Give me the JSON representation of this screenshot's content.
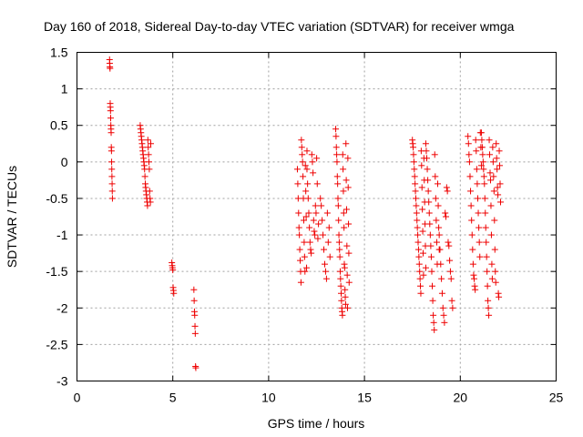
{
  "chart_data": {
    "type": "scatter",
    "title": "Day 160 of 2018, Sidereal Day-to-day VTEC variation (SDTVAR) for receiver wmga",
    "xlabel": "GPS time / hours",
    "ylabel": "SDTVAR / TECUs",
    "xlim": [
      0,
      25
    ],
    "ylim": [
      -3,
      1.5
    ],
    "xticks": [
      "0",
      "5",
      "10",
      "15",
      "20",
      "25"
    ],
    "yticks": [
      "1.5",
      "1",
      "0.5",
      "0",
      "-0.5",
      "-1",
      "-1.5",
      "-2",
      "-2.5",
      "-3"
    ],
    "grid": true,
    "marker": "+",
    "color": "#ee0000",
    "segments": [
      {
        "t0": 1.7,
        "t1": 1.85,
        "values": [
          1.4,
          1.35,
          1.3,
          1.28,
          0.8,
          0.75,
          0.7,
          0.6,
          0.5,
          0.45,
          0.4,
          0.2,
          0.15,
          0.0,
          -0.1,
          -0.2,
          -0.3,
          -0.4,
          -0.5
        ]
      },
      {
        "t0": 3.3,
        "t1": 3.85,
        "values": [
          0.5,
          0.45,
          0.4,
          0.35,
          0.3,
          0.25,
          0.2,
          0.15,
          0.1,
          0.05,
          0.0,
          -0.05,
          -0.1,
          -0.2,
          -0.3,
          -0.35,
          -0.4,
          -0.45,
          -0.5,
          -0.55,
          -0.6,
          0.3,
          0.2,
          0.1,
          0.0,
          -0.1,
          -0.4,
          -0.5,
          -0.55,
          0.25
        ]
      },
      {
        "t0": 4.95,
        "t1": 5.05,
        "values": [
          -1.38,
          -1.42,
          -1.45,
          -1.48,
          -1.72,
          -1.76,
          -1.8
        ]
      },
      {
        "t0": 6.1,
        "t1": 6.2,
        "values": [
          -1.75,
          -1.9,
          -2.05,
          -2.1,
          -2.25,
          -2.35,
          -2.8,
          -2.82
        ]
      },
      {
        "t0": 11.5,
        "t1": 12.0,
        "values": [
          -0.1,
          -0.3,
          -0.5,
          -0.7,
          -0.9,
          -1.0,
          -1.2,
          -1.35,
          -1.5,
          -1.65,
          0.3,
          0.2,
          0.1,
          0.0,
          -0.2,
          -0.5,
          -0.8,
          -1.1,
          -1.3,
          -1.5,
          -0.05,
          -0.4,
          -0.75,
          -1.45,
          0.15
        ]
      },
      {
        "t0": 12.0,
        "t1": 12.6,
        "values": [
          -0.1,
          -0.3,
          -0.5,
          -0.7,
          -0.9,
          -1.1,
          -1.2,
          -1.25,
          0.1,
          0.0,
          -0.15,
          -0.8,
          -0.95,
          -1.0,
          -0.6,
          -0.7,
          0.05,
          -0.3,
          -1.05,
          -0.85
        ]
      },
      {
        "t0": 12.7,
        "t1": 13.2,
        "values": [
          -0.5,
          -0.6,
          -0.8,
          -1.0,
          -1.2,
          -1.4,
          -1.5,
          -1.6,
          -0.7,
          -1.1,
          -0.9,
          -1.3
        ]
      },
      {
        "t0": 13.5,
        "t1": 14.2,
        "values": [
          0.45,
          0.35,
          0.2,
          0.1,
          0.0,
          -0.2,
          -0.3,
          -0.5,
          -0.6,
          -0.8,
          -1.0,
          -1.1,
          -1.2,
          -1.3,
          -1.5,
          -1.6,
          -1.7,
          -1.8,
          -1.9,
          -2.0,
          -2.05,
          -2.1,
          0.1,
          -0.1,
          -0.4,
          -0.7,
          -0.9,
          -1.4,
          -1.45,
          -1.75,
          -1.85,
          -1.95,
          0.25,
          -0.25,
          -0.65,
          -1.15,
          -1.55,
          -2.0,
          0.05,
          -0.35,
          -0.85,
          -1.25,
          -1.65
        ]
      },
      {
        "t0": 17.5,
        "t1": 18.2,
        "values": [
          0.3,
          0.25,
          0.2,
          0.1,
          0.0,
          -0.1,
          -0.2,
          -0.3,
          -0.4,
          -0.5,
          -0.6,
          -0.7,
          -0.8,
          -0.9,
          -1.0,
          -1.1,
          -1.2,
          -1.3,
          -1.4,
          -1.5,
          -1.6,
          -1.7,
          -1.8,
          0.15,
          -0.05,
          -0.35,
          -0.65,
          -0.95,
          -1.25,
          -1.55,
          0.05,
          -0.25,
          -0.55,
          -0.85,
          -1.15,
          -1.45
        ]
      },
      {
        "t0": 18.2,
        "t1": 18.9,
        "values": [
          0.25,
          0.15,
          0.05,
          -0.1,
          -0.25,
          -0.4,
          -0.55,
          -0.7,
          -0.85,
          -1.0,
          -1.15,
          -1.3,
          -1.5,
          -1.7,
          -1.9,
          -2.1,
          -2.2,
          -2.3,
          0.1,
          -0.2,
          -0.5,
          -0.8,
          -1.1,
          -1.4,
          -0.3,
          -0.6,
          -0.9,
          -1.2
        ]
      },
      {
        "t0": 18.9,
        "t1": 19.6,
        "values": [
          -1.0,
          -1.2,
          -1.4,
          -1.6,
          -1.8,
          -2.0,
          -2.1,
          -2.2,
          -0.7,
          -0.75,
          -0.35,
          -0.4,
          -1.1,
          -1.15,
          -1.35,
          -1.5,
          -1.6,
          -1.9,
          -2.0
        ]
      },
      {
        "t0": 20.4,
        "t1": 21.1,
        "values": [
          0.35,
          0.25,
          0.1,
          0.0,
          -0.2,
          -0.4,
          -0.6,
          -0.8,
          -1.0,
          -1.2,
          -1.4,
          -1.55,
          -1.6,
          -1.7,
          -1.75,
          0.3,
          0.15,
          -0.1,
          -0.3,
          -0.5,
          -0.7,
          -0.9,
          -1.1,
          -1.3,
          0.4,
          0.2,
          -0.05
        ]
      },
      {
        "t0": 21.1,
        "t1": 22.1,
        "values": [
          0.4,
          0.3,
          0.2,
          0.1,
          0.0,
          -0.1,
          -0.2,
          -0.3,
          -0.5,
          -0.7,
          -0.9,
          -1.1,
          -1.3,
          -1.5,
          -1.7,
          -1.9,
          -2.0,
          -2.1,
          0.3,
          0.1,
          -0.15,
          -0.25,
          -0.6,
          -1.0,
          -1.4,
          -1.6,
          0.2,
          0.0,
          -0.2,
          -0.4,
          -0.8,
          -1.2,
          -1.5,
          -1.65,
          0.25,
          0.05,
          -0.1,
          -0.35,
          -0.45,
          -1.8,
          -1.85,
          0.15,
          -0.05,
          -0.3,
          -0.55
        ]
      }
    ]
  }
}
